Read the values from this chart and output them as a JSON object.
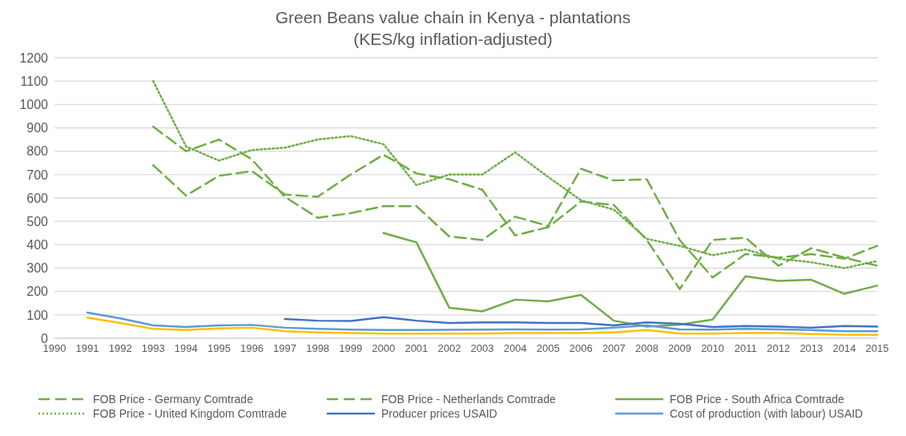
{
  "chart_data": {
    "type": "line",
    "title": "Green Beans value chain in Kenya - plantations\n(KES/kg inflation-adjusted)",
    "categories": [
      "1990",
      "1991",
      "1992",
      "1993",
      "1994",
      "1995",
      "1996",
      "1997",
      "1998",
      "1999",
      "2000",
      "2001",
      "2002",
      "2003",
      "2004",
      "2005",
      "2006",
      "2007",
      "2008",
      "2009",
      "2010",
      "2011",
      "2012",
      "2013",
      "2014",
      "2015"
    ],
    "ylim": [
      0,
      1200
    ],
    "yticks": [
      0,
      100,
      200,
      300,
      400,
      500,
      600,
      700,
      800,
      900,
      1000,
      1100,
      1200
    ],
    "grid": "y",
    "legend": "bottom",
    "marker": "none",
    "series": [
      {
        "name": "FOB Price - Germany Comtrade",
        "color": "#70ad47",
        "line_style": "dashed",
        "values": [
          null,
          null,
          null,
          905,
          800,
          850,
          765,
          605,
          515,
          535,
          565,
          565,
          435,
          420,
          520,
          480,
          725,
          675,
          680,
          420,
          260,
          360,
          345,
          360,
          340,
          395
        ]
      },
      {
        "name": "FOB Price - Netherlands Comtrade",
        "color": "#70ad47",
        "line_style": "dashed",
        "values": [
          null,
          null,
          null,
          740,
          610,
          695,
          715,
          615,
          605,
          700,
          785,
          705,
          680,
          635,
          440,
          475,
          585,
          570,
          420,
          210,
          420,
          430,
          310,
          385,
          345,
          310
        ]
      },
      {
        "name": "FOB Price - South Africa Comtrade",
        "color": "#70ad47",
        "line_style": "solid",
        "values": [
          null,
          null,
          null,
          null,
          null,
          null,
          null,
          null,
          null,
          null,
          450,
          410,
          130,
          115,
          165,
          158,
          185,
          75,
          50,
          58,
          80,
          265,
          245,
          250,
          190,
          225
        ]
      },
      {
        "name": "FOB Price - United Kingdom Comtrade",
        "color": "#70ad47",
        "line_style": "dotted",
        "values": [
          null,
          null,
          null,
          1100,
          820,
          760,
          805,
          815,
          850,
          865,
          830,
          655,
          700,
          700,
          795,
          690,
          590,
          550,
          425,
          395,
          355,
          380,
          340,
          325,
          300,
          330
        ]
      },
      {
        "name": "Producer prices USAID",
        "color": "#4472c4",
        "line_style": "solid",
        "values": [
          null,
          null,
          null,
          null,
          null,
          null,
          null,
          82,
          75,
          74,
          90,
          75,
          65,
          68,
          68,
          65,
          65,
          55,
          68,
          62,
          48,
          52,
          50,
          45,
          52,
          50
        ]
      },
      {
        "name": "Cost of production (with labour) USAID",
        "color": "#5b9bd5",
        "line_style": "solid",
        "values": [
          null,
          110,
          85,
          55,
          48,
          55,
          57,
          45,
          40,
          37,
          35,
          35,
          36,
          37,
          38,
          37,
          38,
          45,
          55,
          38,
          37,
          40,
          38,
          35,
          30,
          30
        ]
      },
      {
        "color": "#ffc000",
        "line_style": "solid",
        "values": [
          null,
          88,
          65,
          40,
          35,
          42,
          45,
          30,
          25,
          22,
          20,
          20,
          20,
          20,
          22,
          22,
          22,
          25,
          35,
          20,
          20,
          22,
          22,
          18,
          15,
          15
        ]
      }
    ]
  }
}
